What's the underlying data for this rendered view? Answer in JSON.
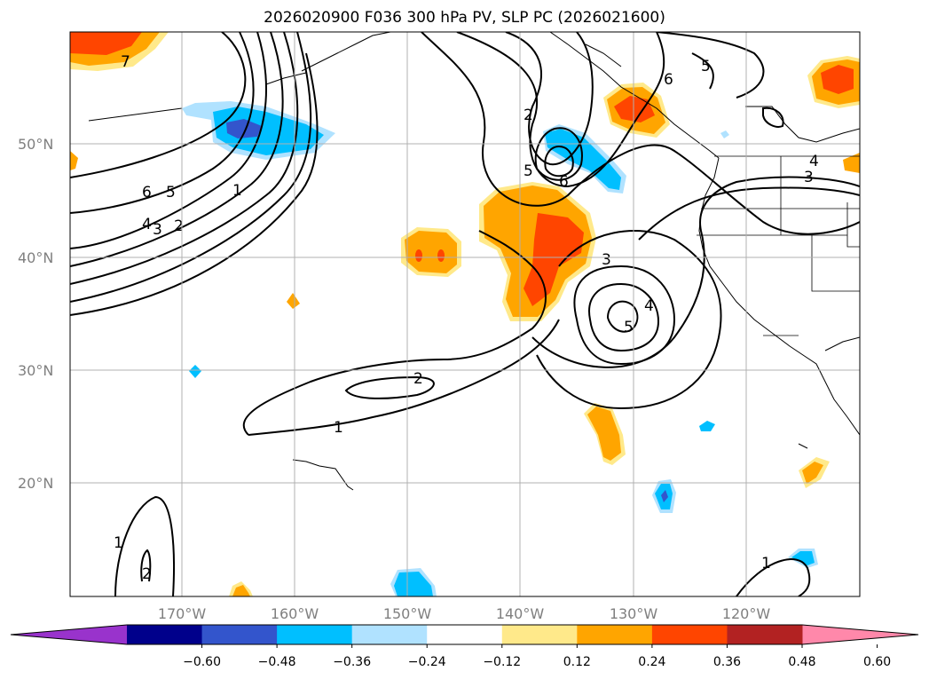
{
  "title": "2026020900 F036 300 hPa PV, SLP PC (2026021600)",
  "latitude_labels": [
    "50°N",
    "40°N",
    "30°N",
    "20°N"
  ],
  "longitude_labels": [
    "170°W",
    "160°W",
    "150°W",
    "140°W",
    "130°W",
    "120°W"
  ],
  "colorbar": {
    "tick_labels": [
      "−0.60",
      "−0.48",
      "−0.36",
      "−0.24",
      "−0.12",
      "0.12",
      "0.24",
      "0.36",
      "0.48",
      "0.60"
    ],
    "colors": [
      "#9933cc",
      "#00008b",
      "#3355cc",
      "#00bfff",
      "#b0e2ff",
      "#ffffff",
      "#ffe98a",
      "#ffa500",
      "#ff4500",
      "#b22222",
      "#ff88aa"
    ]
  },
  "contour_labels": [
    "7",
    "6",
    "5",
    "4",
    "3",
    "2",
    "1",
    "2",
    "5",
    "6",
    "6",
    "5",
    "3",
    "4",
    "5",
    "2",
    "1",
    "1",
    "2",
    "1",
    "3",
    "4"
  ],
  "colors": {
    "orange_light": "#ffe98a",
    "orange": "#ffa500",
    "red_orange": "#ff4500",
    "sky_blue": "#00bfff",
    "light_blue": "#b0e2ff",
    "medium_blue": "#3355cc"
  }
}
